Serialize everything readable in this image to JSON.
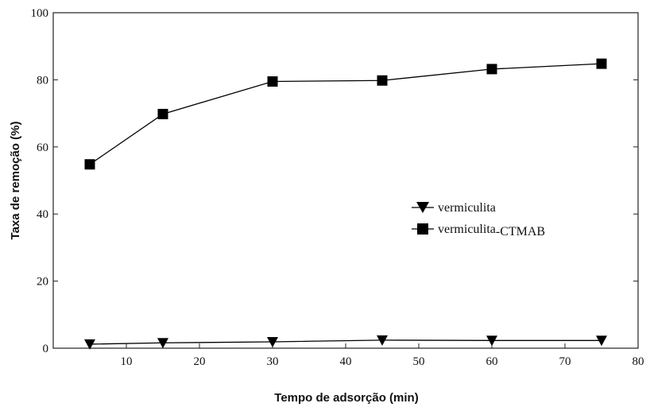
{
  "chart_data": {
    "type": "line",
    "xlabel": "Tempo de adsorção (min)",
    "ylabel": "Taxa de remoção (%)",
    "xlim": [
      0,
      80
    ],
    "ylim": [
      0,
      100
    ],
    "x_ticks": [
      "10",
      "20",
      "30",
      "40",
      "50",
      "60",
      "70",
      "80"
    ],
    "y_ticks": [
      "0",
      "20",
      "40",
      "60",
      "80",
      "100"
    ],
    "grid": false,
    "legend_position": "center-right",
    "x": [
      5,
      15,
      30,
      45,
      60,
      75
    ],
    "series": [
      {
        "name": "vermiculita",
        "marker": "triangle-down",
        "color": "#000000",
        "values": [
          1.2,
          1.6,
          1.9,
          2.4,
          2.3,
          2.3
        ]
      },
      {
        "name": "vermiculita-CTMAB",
        "marker": "square",
        "color": "#000000",
        "values": [
          54.8,
          69.8,
          79.5,
          79.8,
          83.2,
          84.8
        ]
      }
    ],
    "legend": {
      "entries": [
        {
          "label_parts": [
            "vermiculita"
          ]
        },
        {
          "label_parts": [
            "vermiculita",
            "-",
            "CTMAB"
          ]
        }
      ]
    }
  }
}
